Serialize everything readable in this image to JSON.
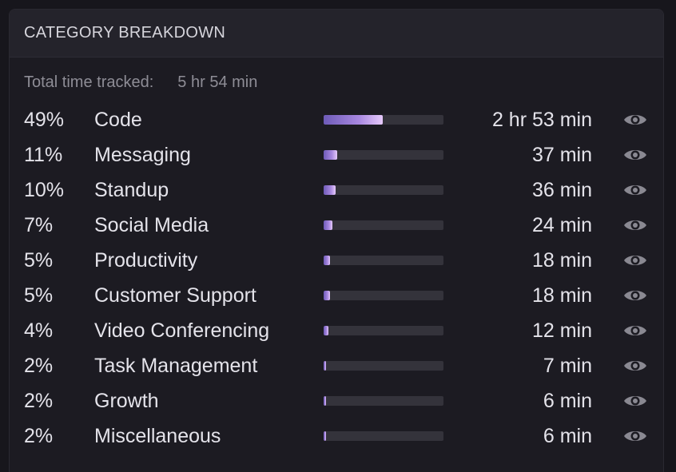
{
  "panel": {
    "title": "CATEGORY BREAKDOWN",
    "total_label": "Total time tracked:",
    "total_value": "5 hr 54 min"
  },
  "colors": {
    "bar_start": "#6e5bb8",
    "bar_end": "#e6c9fb",
    "track": "#34333b",
    "eye_icon": "#8a8992"
  },
  "categories": [
    {
      "pct": "49%",
      "name": "Code",
      "duration": "2 hr 53 min",
      "share": 0.49,
      "icon": "eye-icon"
    },
    {
      "pct": "11%",
      "name": "Messaging",
      "duration": "37 min",
      "share": 0.11,
      "icon": "eye-icon"
    },
    {
      "pct": "10%",
      "name": "Standup",
      "duration": "36 min",
      "share": 0.1,
      "icon": "eye-icon"
    },
    {
      "pct": "7%",
      "name": "Social Media",
      "duration": "24 min",
      "share": 0.07,
      "icon": "eye-icon"
    },
    {
      "pct": "5%",
      "name": "Productivity",
      "duration": "18 min",
      "share": 0.05,
      "icon": "eye-icon"
    },
    {
      "pct": "5%",
      "name": "Customer Support",
      "duration": "18 min",
      "share": 0.05,
      "icon": "eye-icon"
    },
    {
      "pct": "4%",
      "name": "Video Conferencing",
      "duration": "12 min",
      "share": 0.04,
      "icon": "eye-icon"
    },
    {
      "pct": "2%",
      "name": "Task Management",
      "duration": "7 min",
      "share": 0.02,
      "icon": "eye-icon"
    },
    {
      "pct": "2%",
      "name": "Growth",
      "duration": "6 min",
      "share": 0.02,
      "icon": "eye-icon"
    },
    {
      "pct": "2%",
      "name": "Miscellaneous",
      "duration": "6 min",
      "share": 0.02,
      "icon": "eye-icon"
    }
  ]
}
